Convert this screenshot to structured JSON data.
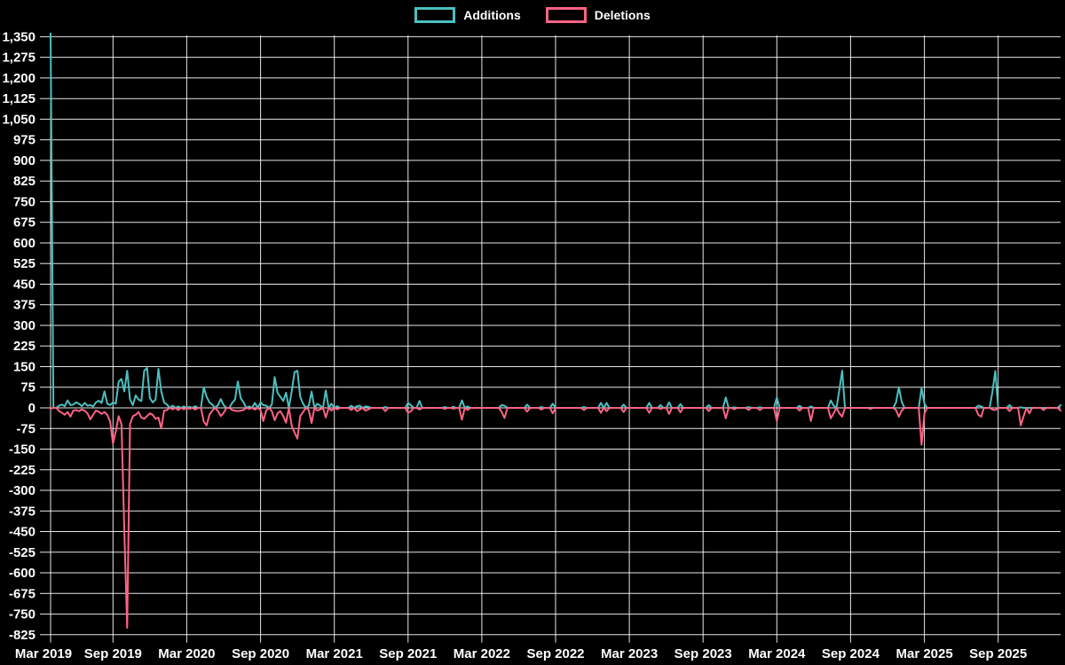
{
  "legend": {
    "items": [
      {
        "label": "Additions",
        "color": "#4bc0c0"
      },
      {
        "label": "Deletions",
        "color": "#ff6384"
      }
    ]
  },
  "chart_data": {
    "type": "line",
    "title": "",
    "xlabel": "",
    "ylabel": "",
    "background_color": "#000000",
    "grid_color": "rgba(255,255,255,0.9)",
    "text_color": "#ffffff",
    "legend_position": "top",
    "grid": "on",
    "y_range": [
      -825,
      1350
    ],
    "y_step": 75,
    "y_ticks": [
      1350,
      1275,
      1200,
      1125,
      1050,
      975,
      900,
      825,
      750,
      675,
      600,
      525,
      450,
      375,
      300,
      225,
      150,
      75,
      0,
      -75,
      -150,
      -225,
      -300,
      -375,
      -450,
      -525,
      -600,
      -675,
      -750,
      -825
    ],
    "x_unit": "week-index (weekly data starting ~Apr 2019)",
    "total_weeks": 357,
    "x_ticks": [
      {
        "label": "Mar 2019",
        "week": -4
      },
      {
        "label": "Sep 2019",
        "week": 22
      },
      {
        "label": "Mar 2020",
        "week": 48
      },
      {
        "label": "Sep 2020",
        "week": 74
      },
      {
        "label": "Mar 2021",
        "week": 100
      },
      {
        "label": "Sep 2021",
        "week": 126
      },
      {
        "label": "Mar 2022",
        "week": 152
      },
      {
        "label": "Sep 2022",
        "week": 178
      },
      {
        "label": "Mar 2023",
        "week": 204
      },
      {
        "label": "Sep 2023",
        "week": 230
      },
      {
        "label": "Mar 2024",
        "week": 256
      },
      {
        "label": "Sep 2024",
        "week": 282
      },
      {
        "label": "Mar 2025",
        "week": 308
      },
      {
        "label": "Sep 2025",
        "week": 334
      }
    ],
    "series": [
      {
        "name": "Additions",
        "color": "#4bc0c0",
        "default_value": 0,
        "points": [
          [
            0,
            1362
          ],
          [
            3,
            8
          ],
          [
            4,
            12
          ],
          [
            5,
            6
          ],
          [
            6,
            27
          ],
          [
            7,
            10
          ],
          [
            8,
            12
          ],
          [
            9,
            20
          ],
          [
            10,
            15
          ],
          [
            11,
            6
          ],
          [
            12,
            18
          ],
          [
            13,
            8
          ],
          [
            14,
            10
          ],
          [
            15,
            5
          ],
          [
            16,
            20
          ],
          [
            17,
            26
          ],
          [
            18,
            18
          ],
          [
            19,
            60
          ],
          [
            20,
            15
          ],
          [
            21,
            10
          ],
          [
            22,
            20
          ],
          [
            23,
            15
          ],
          [
            24,
            95
          ],
          [
            25,
            105
          ],
          [
            26,
            60
          ],
          [
            27,
            135
          ],
          [
            28,
            30
          ],
          [
            29,
            10
          ],
          [
            30,
            45
          ],
          [
            31,
            30
          ],
          [
            32,
            25
          ],
          [
            33,
            135
          ],
          [
            34,
            145
          ],
          [
            35,
            35
          ],
          [
            36,
            20
          ],
          [
            37,
            30
          ],
          [
            38,
            142
          ],
          [
            39,
            60
          ],
          [
            40,
            20
          ],
          [
            41,
            12
          ],
          [
            43,
            8
          ],
          [
            45,
            5
          ],
          [
            47,
            5
          ],
          [
            49,
            4
          ],
          [
            51,
            6
          ],
          [
            54,
            75
          ],
          [
            55,
            40
          ],
          [
            56,
            20
          ],
          [
            57,
            12
          ],
          [
            59,
            10
          ],
          [
            60,
            32
          ],
          [
            61,
            10
          ],
          [
            64,
            18
          ],
          [
            65,
            30
          ],
          [
            66,
            96
          ],
          [
            67,
            35
          ],
          [
            68,
            20
          ],
          [
            70,
            5
          ],
          [
            72,
            18
          ],
          [
            74,
            20
          ],
          [
            75,
            10
          ],
          [
            76,
            8
          ],
          [
            78,
            12
          ],
          [
            79,
            112
          ],
          [
            80,
            55
          ],
          [
            81,
            40
          ],
          [
            82,
            25
          ],
          [
            83,
            55
          ],
          [
            85,
            60
          ],
          [
            86,
            130
          ],
          [
            87,
            135
          ],
          [
            88,
            40
          ],
          [
            89,
            15
          ],
          [
            91,
            8
          ],
          [
            92,
            59
          ],
          [
            94,
            15
          ],
          [
            95,
            8
          ],
          [
            97,
            64
          ],
          [
            99,
            15
          ],
          [
            101,
            6
          ],
          [
            106,
            8
          ],
          [
            108,
            6
          ],
          [
            109,
            8
          ],
          [
            111,
            5
          ],
          [
            112,
            4
          ],
          [
            118,
            3
          ],
          [
            126,
            18
          ],
          [
            127,
            10
          ],
          [
            130,
            25
          ],
          [
            139,
            3
          ],
          [
            142,
            4
          ],
          [
            145,
            27
          ],
          [
            147,
            5
          ],
          [
            159,
            10
          ],
          [
            160,
            8
          ],
          [
            168,
            12
          ],
          [
            173,
            3
          ],
          [
            177,
            15
          ],
          [
            188,
            3
          ],
          [
            194,
            18
          ],
          [
            196,
            18
          ],
          [
            202,
            12
          ],
          [
            211,
            18
          ],
          [
            215,
            10
          ],
          [
            218,
            20
          ],
          [
            222,
            14
          ],
          [
            232,
            10
          ],
          [
            238,
            38
          ],
          [
            241,
            2
          ],
          [
            246,
            3
          ],
          [
            250,
            2
          ],
          [
            256,
            38
          ],
          [
            264,
            8
          ],
          [
            268,
            5
          ],
          [
            275,
            27
          ],
          [
            276,
            8
          ],
          [
            278,
            64
          ],
          [
            279,
            135
          ],
          [
            298,
            20
          ],
          [
            299,
            75
          ],
          [
            300,
            22
          ],
          [
            307,
            72
          ],
          [
            308,
            15
          ],
          [
            327,
            8
          ],
          [
            328,
            5
          ],
          [
            332,
            60
          ],
          [
            333,
            134
          ],
          [
            338,
            10
          ],
          [
            342,
            2
          ],
          [
            356,
            10
          ]
        ]
      },
      {
        "name": "Deletions",
        "color": "#ff6384",
        "default_value": 0,
        "points": [
          [
            0,
            -3
          ],
          [
            3,
            -12
          ],
          [
            4,
            -18
          ],
          [
            5,
            -25
          ],
          [
            6,
            -15
          ],
          [
            7,
            -32
          ],
          [
            8,
            -10
          ],
          [
            9,
            -8
          ],
          [
            10,
            -12
          ],
          [
            11,
            -6
          ],
          [
            12,
            -10
          ],
          [
            13,
            -20
          ],
          [
            14,
            -42
          ],
          [
            15,
            -25
          ],
          [
            16,
            -10
          ],
          [
            17,
            -14
          ],
          [
            18,
            -22
          ],
          [
            19,
            -15
          ],
          [
            20,
            -25
          ],
          [
            21,
            -50
          ],
          [
            22,
            -130
          ],
          [
            23,
            -85
          ],
          [
            24,
            -30
          ],
          [
            25,
            -60
          ],
          [
            26,
            -450
          ],
          [
            27,
            -800
          ],
          [
            28,
            -60
          ],
          [
            29,
            -30
          ],
          [
            30,
            -25
          ],
          [
            31,
            -15
          ],
          [
            32,
            -35
          ],
          [
            33,
            -40
          ],
          [
            34,
            -30
          ],
          [
            35,
            -20
          ],
          [
            36,
            -25
          ],
          [
            37,
            -40
          ],
          [
            38,
            -35
          ],
          [
            39,
            -75
          ],
          [
            40,
            -10
          ],
          [
            41,
            -8
          ],
          [
            43,
            -5
          ],
          [
            45,
            -8
          ],
          [
            47,
            -5
          ],
          [
            49,
            -4
          ],
          [
            51,
            -6
          ],
          [
            54,
            -50
          ],
          [
            55,
            -64
          ],
          [
            56,
            -25
          ],
          [
            57,
            -10
          ],
          [
            59,
            -12
          ],
          [
            60,
            -30
          ],
          [
            61,
            -18
          ],
          [
            64,
            -8
          ],
          [
            65,
            -10
          ],
          [
            66,
            -12
          ],
          [
            67,
            -10
          ],
          [
            68,
            -8
          ],
          [
            70,
            -4
          ],
          [
            72,
            -6
          ],
          [
            74,
            -8
          ],
          [
            75,
            -48
          ],
          [
            76,
            -10
          ],
          [
            78,
            -12
          ],
          [
            79,
            -45
          ],
          [
            80,
            -20
          ],
          [
            81,
            -12
          ],
          [
            82,
            -30
          ],
          [
            83,
            -54
          ],
          [
            85,
            -65
          ],
          [
            86,
            -90
          ],
          [
            87,
            -112
          ],
          [
            88,
            -30
          ],
          [
            89,
            -15
          ],
          [
            91,
            -8
          ],
          [
            92,
            -55
          ],
          [
            94,
            -10
          ],
          [
            95,
            -6
          ],
          [
            97,
            -35
          ],
          [
            99,
            -10
          ],
          [
            101,
            -5
          ],
          [
            106,
            -8
          ],
          [
            108,
            -12
          ],
          [
            109,
            -6
          ],
          [
            111,
            -10
          ],
          [
            112,
            -6
          ],
          [
            118,
            -12
          ],
          [
            126,
            -18
          ],
          [
            127,
            -12
          ],
          [
            130,
            -6
          ],
          [
            139,
            -4
          ],
          [
            142,
            -3
          ],
          [
            145,
            -43
          ],
          [
            147,
            -8
          ],
          [
            159,
            -15
          ],
          [
            160,
            -37
          ],
          [
            168,
            -14
          ],
          [
            173,
            -6
          ],
          [
            177,
            -20
          ],
          [
            188,
            -8
          ],
          [
            194,
            -18
          ],
          [
            196,
            -12
          ],
          [
            202,
            -15
          ],
          [
            211,
            -18
          ],
          [
            215,
            -4
          ],
          [
            218,
            -22
          ],
          [
            222,
            -16
          ],
          [
            232,
            -12
          ],
          [
            238,
            -38
          ],
          [
            241,
            -5
          ],
          [
            246,
            -8
          ],
          [
            250,
            -8
          ],
          [
            256,
            -48
          ],
          [
            264,
            -10
          ],
          [
            268,
            -48
          ],
          [
            275,
            -38
          ],
          [
            276,
            -20
          ],
          [
            278,
            -20
          ],
          [
            279,
            -32
          ],
          [
            289,
            -4
          ],
          [
            298,
            -8
          ],
          [
            299,
            -32
          ],
          [
            300,
            -10
          ],
          [
            307,
            -134
          ],
          [
            308,
            -20
          ],
          [
            327,
            -25
          ],
          [
            328,
            -32
          ],
          [
            332,
            -6
          ],
          [
            333,
            -8
          ],
          [
            338,
            -12
          ],
          [
            342,
            -64
          ],
          [
            343,
            -30
          ],
          [
            345,
            -20
          ],
          [
            350,
            -8
          ],
          [
            356,
            -10
          ]
        ]
      }
    ]
  }
}
